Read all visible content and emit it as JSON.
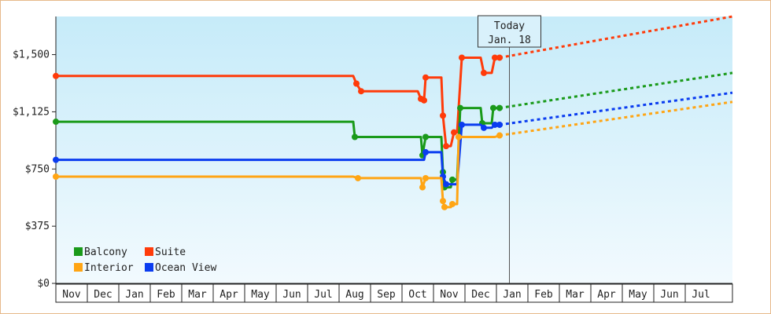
{
  "chart_data": {
    "type": "line",
    "y_tick_labels": [
      "$0",
      "$375",
      "$750",
      "$1,125",
      "$1,500"
    ],
    "ylim": [
      0,
      1500
    ],
    "months": [
      "Nov",
      "Dec",
      "Jan",
      "Feb",
      "Mar",
      "Apr",
      "May",
      "Jun",
      "Jul",
      "Aug",
      "Sep",
      "Oct",
      "Nov",
      "Dec",
      "Jan",
      "Feb",
      "Mar",
      "Apr",
      "May",
      "Jun",
      "Jul"
    ],
    "today": {
      "line1": "Today",
      "line2": "Jan. 18",
      "x": 14.4
    },
    "x_max": 21.5,
    "legend": [
      {
        "name": "Balcony",
        "color": "#1a9a1a"
      },
      {
        "name": "Suite",
        "color": "#ff3b0a"
      },
      {
        "name": "Interior",
        "color": "#ffa514"
      },
      {
        "name": "Ocean View",
        "color": "#0a3cf0"
      }
    ],
    "series": [
      {
        "name": "Suite",
        "color": "#ff3b0a",
        "points": [
          [
            0,
            1360
          ],
          [
            9.45,
            1360
          ],
          [
            9.55,
            1310
          ],
          [
            9.7,
            1260
          ],
          [
            11.5,
            1260
          ],
          [
            11.6,
            1210
          ],
          [
            11.7,
            1200
          ],
          [
            11.75,
            1350
          ],
          [
            12.25,
            1350
          ],
          [
            12.3,
            1100
          ],
          [
            12.4,
            900
          ],
          [
            12.55,
            900
          ],
          [
            12.65,
            990
          ],
          [
            12.75,
            990
          ],
          [
            12.9,
            1480
          ],
          [
            13.5,
            1480
          ],
          [
            13.6,
            1380
          ],
          [
            13.85,
            1380
          ],
          [
            13.95,
            1480
          ],
          [
            14.1,
            1480
          ]
        ],
        "forecast": [
          [
            14.1,
            1480
          ],
          [
            21.5,
            1750
          ]
        ]
      },
      {
        "name": "Balcony",
        "color": "#1a9a1a",
        "points": [
          [
            0,
            1060
          ],
          [
            9.45,
            1060
          ],
          [
            9.5,
            960
          ],
          [
            9.7,
            960
          ],
          [
            11.6,
            960
          ],
          [
            11.65,
            840
          ],
          [
            11.75,
            960
          ],
          [
            12.25,
            960
          ],
          [
            12.3,
            730
          ],
          [
            12.35,
            630
          ],
          [
            12.55,
            630
          ],
          [
            12.6,
            680
          ],
          [
            12.75,
            680
          ],
          [
            12.85,
            1150
          ],
          [
            13.5,
            1150
          ],
          [
            13.55,
            1050
          ],
          [
            13.85,
            1050
          ],
          [
            13.9,
            1150
          ],
          [
            14.1,
            1150
          ]
        ],
        "forecast": [
          [
            14.1,
            1150
          ],
          [
            21.5,
            1380
          ]
        ]
      },
      {
        "name": "Ocean View",
        "color": "#0a3cf0",
        "points": [
          [
            0,
            810
          ],
          [
            9.45,
            810
          ],
          [
            9.65,
            810
          ],
          [
            11.6,
            810
          ],
          [
            11.7,
            810
          ],
          [
            11.75,
            860
          ],
          [
            12.25,
            860
          ],
          [
            12.3,
            700
          ],
          [
            12.4,
            650
          ],
          [
            12.55,
            650
          ],
          [
            12.65,
            650
          ],
          [
            12.75,
            650
          ],
          [
            12.9,
            1040
          ],
          [
            13.5,
            1040
          ],
          [
            13.6,
            1020
          ],
          [
            13.85,
            1020
          ],
          [
            13.95,
            1040
          ],
          [
            14.1,
            1040
          ]
        ],
        "forecast": [
          [
            14.1,
            1040
          ],
          [
            21.5,
            1250
          ]
        ]
      },
      {
        "name": "Interior",
        "color": "#ffa514",
        "points": [
          [
            0,
            700
          ],
          [
            9.45,
            700
          ],
          [
            9.6,
            690
          ],
          [
            11.6,
            690
          ],
          [
            11.65,
            630
          ],
          [
            11.75,
            690
          ],
          [
            12.25,
            690
          ],
          [
            12.3,
            540
          ],
          [
            12.35,
            500
          ],
          [
            12.55,
            500
          ],
          [
            12.6,
            520
          ],
          [
            12.75,
            520
          ],
          [
            12.8,
            960
          ],
          [
            13.5,
            960
          ],
          [
            13.6,
            960
          ],
          [
            13.85,
            960
          ],
          [
            13.95,
            960
          ],
          [
            14.1,
            970
          ]
        ],
        "forecast": [
          [
            14.1,
            970
          ],
          [
            21.5,
            1190
          ]
        ]
      }
    ]
  }
}
